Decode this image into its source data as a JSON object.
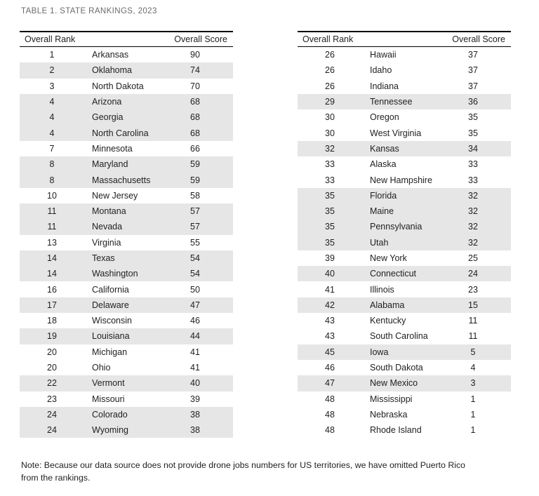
{
  "title": "TABLE 1. STATE RANKINGS, 2023",
  "header": {
    "rank_label": "Overall Rank",
    "score_label": "Overall Score"
  },
  "tables": [
    {
      "rows": [
        {
          "rank": "1",
          "state": "Arkansas",
          "score": "90",
          "shaded": false
        },
        {
          "rank": "2",
          "state": "Oklahoma",
          "score": "74",
          "shaded": true
        },
        {
          "rank": "3",
          "state": "North Dakota",
          "score": "70",
          "shaded": false
        },
        {
          "rank": "4",
          "state": "Arizona",
          "score": "68",
          "shaded": true
        },
        {
          "rank": "4",
          "state": "Georgia",
          "score": "68",
          "shaded": true
        },
        {
          "rank": "4",
          "state": "North Carolina",
          "score": "68",
          "shaded": true
        },
        {
          "rank": "7",
          "state": "Minnesota",
          "score": "66",
          "shaded": false
        },
        {
          "rank": "8",
          "state": "Maryland",
          "score": "59",
          "shaded": true
        },
        {
          "rank": "8",
          "state": "Massachusetts",
          "score": "59",
          "shaded": true
        },
        {
          "rank": "10",
          "state": "New Jersey",
          "score": "58",
          "shaded": false
        },
        {
          "rank": "11",
          "state": "Montana",
          "score": "57",
          "shaded": true
        },
        {
          "rank": "11",
          "state": "Nevada",
          "score": "57",
          "shaded": true
        },
        {
          "rank": "13",
          "state": "Virginia",
          "score": "55",
          "shaded": false
        },
        {
          "rank": "14",
          "state": "Texas",
          "score": "54",
          "shaded": true
        },
        {
          "rank": "14",
          "state": "Washington",
          "score": "54",
          "shaded": true
        },
        {
          "rank": "16",
          "state": "California",
          "score": "50",
          "shaded": false
        },
        {
          "rank": "17",
          "state": "Delaware",
          "score": "47",
          "shaded": true
        },
        {
          "rank": "18",
          "state": "Wisconsin",
          "score": "46",
          "shaded": false
        },
        {
          "rank": "19",
          "state": "Louisiana",
          "score": "44",
          "shaded": true
        },
        {
          "rank": "20",
          "state": "Michigan",
          "score": "41",
          "shaded": false
        },
        {
          "rank": "20",
          "state": "Ohio",
          "score": "41",
          "shaded": false
        },
        {
          "rank": "22",
          "state": "Vermont",
          "score": "40",
          "shaded": true
        },
        {
          "rank": "23",
          "state": "Missouri",
          "score": "39",
          "shaded": false
        },
        {
          "rank": "24",
          "state": "Colorado",
          "score": "38",
          "shaded": true
        },
        {
          "rank": "24",
          "state": "Wyoming",
          "score": "38",
          "shaded": true
        }
      ]
    },
    {
      "rows": [
        {
          "rank": "26",
          "state": "Hawaii",
          "score": "37",
          "shaded": false
        },
        {
          "rank": "26",
          "state": "Idaho",
          "score": "37",
          "shaded": false
        },
        {
          "rank": "26",
          "state": "Indiana",
          "score": "37",
          "shaded": false
        },
        {
          "rank": "29",
          "state": "Tennessee",
          "score": "36",
          "shaded": true
        },
        {
          "rank": "30",
          "state": "Oregon",
          "score": "35",
          "shaded": false
        },
        {
          "rank": "30",
          "state": "West Virginia",
          "score": "35",
          "shaded": false
        },
        {
          "rank": "32",
          "state": "Kansas",
          "score": "34",
          "shaded": true
        },
        {
          "rank": "33",
          "state": "Alaska",
          "score": "33",
          "shaded": false
        },
        {
          "rank": "33",
          "state": "New Hampshire",
          "score": "33",
          "shaded": false
        },
        {
          "rank": "35",
          "state": "Florida",
          "score": "32",
          "shaded": true
        },
        {
          "rank": "35",
          "state": "Maine",
          "score": "32",
          "shaded": true
        },
        {
          "rank": "35",
          "state": "Pennsylvania",
          "score": "32",
          "shaded": true
        },
        {
          "rank": "35",
          "state": "Utah",
          "score": "32",
          "shaded": true
        },
        {
          "rank": "39",
          "state": "New York",
          "score": "25",
          "shaded": false
        },
        {
          "rank": "40",
          "state": "Connecticut",
          "score": "24",
          "shaded": true
        },
        {
          "rank": "41",
          "state": "Illinois",
          "score": "23",
          "shaded": false
        },
        {
          "rank": "42",
          "state": "Alabama",
          "score": "15",
          "shaded": true
        },
        {
          "rank": "43",
          "state": "Kentucky",
          "score": "11",
          "shaded": false
        },
        {
          "rank": "43",
          "state": "South Carolina",
          "score": "11",
          "shaded": false
        },
        {
          "rank": "45",
          "state": "Iowa",
          "score": "5",
          "shaded": true
        },
        {
          "rank": "46",
          "state": "South Dakota",
          "score": "4",
          "shaded": false
        },
        {
          "rank": "47",
          "state": "New Mexico",
          "score": "3",
          "shaded": true
        },
        {
          "rank": "48",
          "state": "Mississippi",
          "score": "1",
          "shaded": false
        },
        {
          "rank": "48",
          "state": "Nebraska",
          "score": "1",
          "shaded": false
        },
        {
          "rank": "48",
          "state": "Rhode Island",
          "score": "1",
          "shaded": false
        }
      ]
    }
  ],
  "note": {
    "line1": "Note: Because our data source does not provide drone jobs numbers for US territories, we have omitted Puerto Rico",
    "line2": "from the rankings."
  },
  "colors": {
    "stripe": "#e6e6e6",
    "title_text": "#6b6b6b",
    "body_text": "#1f1f1f",
    "rule": "#000000"
  }
}
